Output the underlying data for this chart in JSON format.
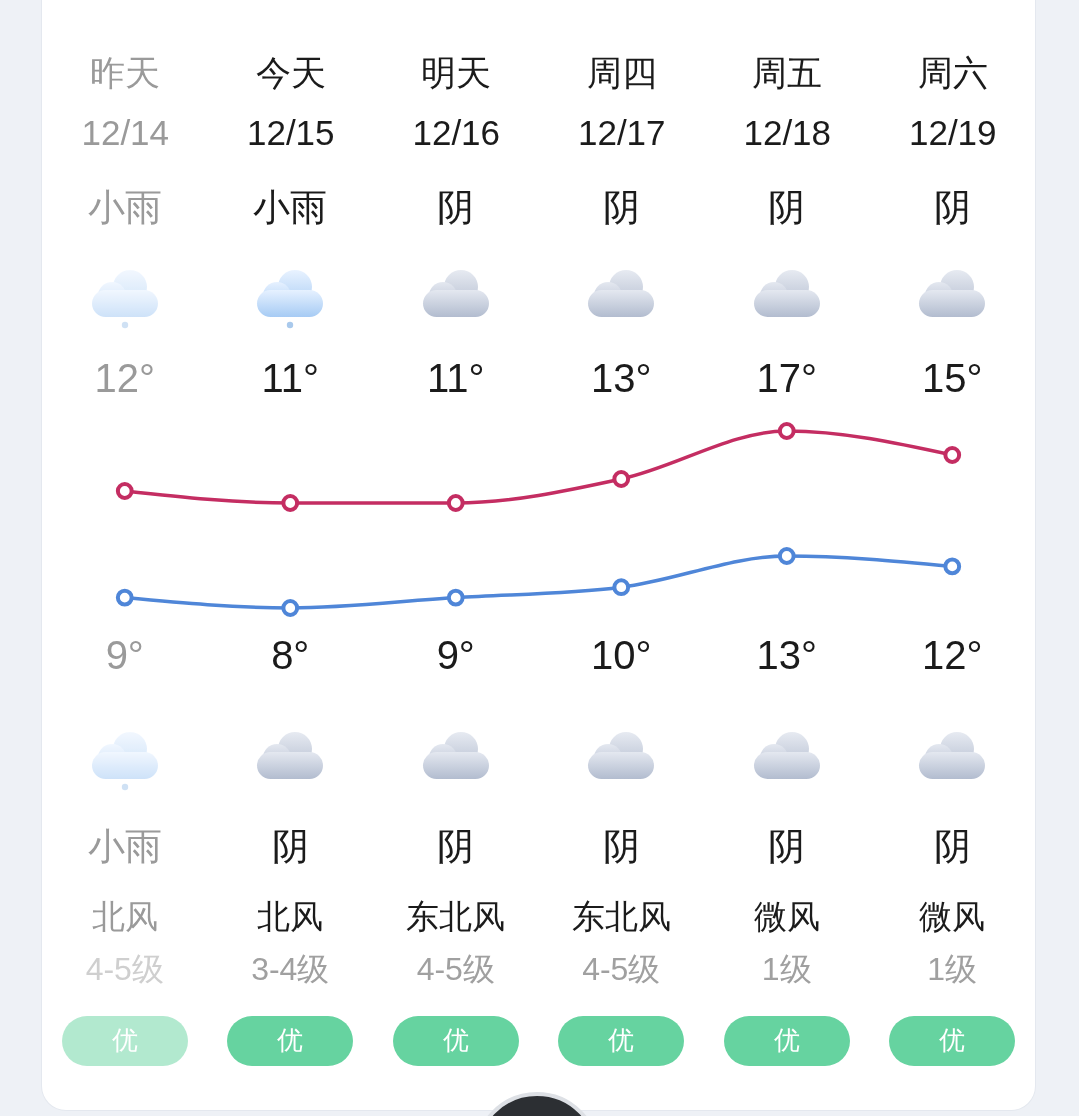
{
  "chart_data": [
    {
      "type": "line",
      "categories": [
        "昨天\n12/14",
        "今天\n12/15",
        "明天\n12/16",
        "周四\n12/17",
        "周五\n12/18",
        "周六\n12/19"
      ],
      "series": [
        {
          "color": "#c42d62",
          "values": [
            12,
            11,
            11,
            13,
            17,
            15
          ],
          "value_labels": [
            "12°",
            "11°",
            "11°",
            "13°",
            "17°",
            "15°"
          ]
        }
      ],
      "tick_labels": "x",
      "marker": "circle",
      "annotations": [
        "小雨",
        "小雨",
        "阴",
        "阴",
        "阴",
        "阴"
      ]
    },
    {
      "type": "line",
      "categories": [
        null,
        null,
        null,
        null,
        null,
        null
      ],
      "series": [
        {
          "color": "#4f86d8",
          "values": [
            9,
            8,
            9,
            10,
            13,
            12
          ],
          "value_labels": [
            "9°",
            "8°",
            "9°",
            "10°",
            "13°",
            "12°"
          ]
        }
      ],
      "tick_labels": false,
      "marker": "circle",
      "annotations": [
        "小雨",
        "阴",
        "阴",
        "阴",
        "阴",
        "阴",
        "北风",
        "北风",
        "东北风",
        "东北风",
        "微风",
        "微风",
        "4-5级",
        "3-4级",
        "4-5级",
        "4-5级",
        "1级",
        "1级",
        "优",
        "优",
        "优",
        "优",
        "优",
        "优"
      ]
    }
  ]
}
